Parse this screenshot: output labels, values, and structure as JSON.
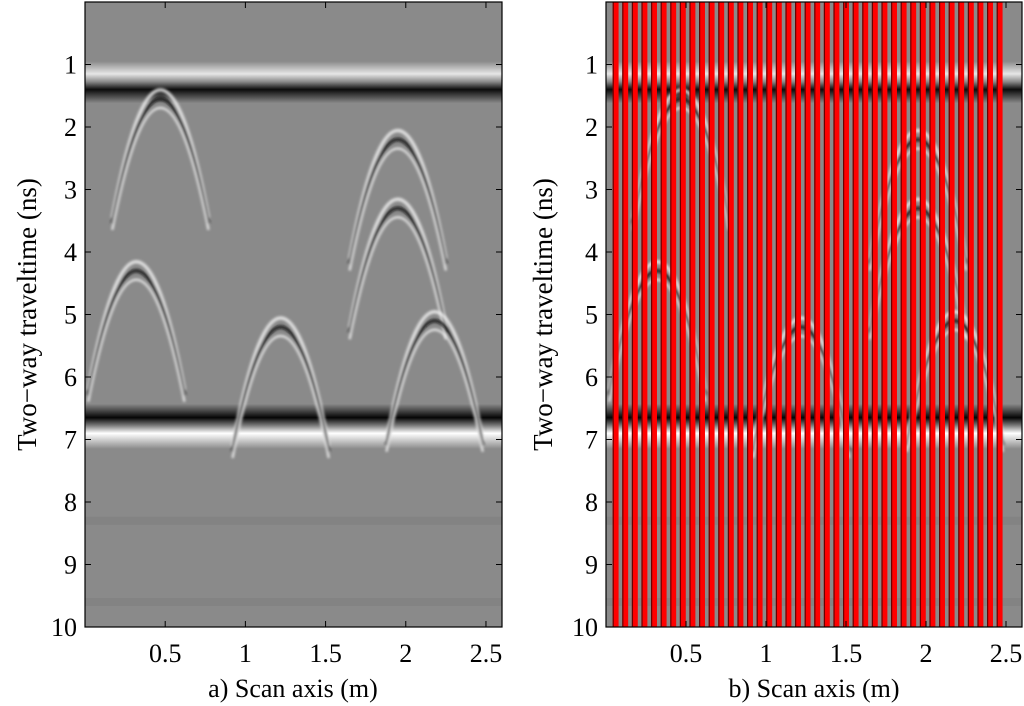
{
  "chart_data": [
    {
      "type": "heatmap",
      "panel": "a",
      "xlabel": "a) Scan axis (m)",
      "ylabel": "Two−way traveltime (ns)",
      "xlim": [
        0,
        2.6
      ],
      "ylim": [
        0,
        10
      ],
      "y_inverted": true,
      "xticks": [
        0.5,
        1,
        1.5,
        2,
        2.5
      ],
      "xticklabels": [
        "0.5",
        "1",
        "1.5",
        "2",
        "2.5"
      ],
      "yticks": [
        1,
        2,
        3,
        4,
        5,
        6,
        7,
        8,
        9,
        10
      ],
      "yticklabels": [
        "1",
        "2",
        "3",
        "4",
        "5",
        "6",
        "7",
        "8",
        "9",
        "10"
      ],
      "colormap": "gray",
      "background_color": "#8a8a8a",
      "horizontal_reflectors": [
        {
          "top_white_ns": 1.15,
          "dark_ns": 1.4
        },
        {
          "dark_ns": 6.65,
          "white_ns": 6.9
        }
      ],
      "hyperbola_apexes": [
        {
          "x": 0.47,
          "t": 1.55
        },
        {
          "x": 0.32,
          "t": 4.3
        },
        {
          "x": 1.22,
          "t": 5.2
        },
        {
          "x": 1.95,
          "t": 2.2
        },
        {
          "x": 1.95,
          "t": 3.3
        },
        {
          "x": 2.18,
          "t": 5.1
        }
      ]
    },
    {
      "type": "heatmap",
      "panel": "b",
      "xlabel": "b) Scan axis (m)",
      "ylabel": "Two−way traveltime (ns)",
      "xlim": [
        0,
        2.6
      ],
      "ylim": [
        0,
        10
      ],
      "y_inverted": true,
      "xticks": [
        0.5,
        1,
        1.5,
        2,
        2.5
      ],
      "xticklabels": [
        "0.5",
        "1",
        "1.5",
        "2",
        "2.5"
      ],
      "yticks": [
        1,
        2,
        3,
        4,
        5,
        6,
        7,
        8,
        9,
        10
      ],
      "yticklabels": [
        "1",
        "2",
        "3",
        "4",
        "5",
        "6",
        "7",
        "8",
        "9",
        "10"
      ],
      "colormap": "gray",
      "background_color": "#8a8a8a",
      "mask_color": "#ff0000",
      "mask_columns_x": [
        0.06,
        0.12,
        0.18,
        0.24,
        0.3,
        0.36,
        0.42,
        0.48,
        0.54,
        0.6,
        0.66,
        0.72,
        0.78,
        0.84,
        0.9,
        0.96,
        1.02,
        1.08,
        1.14,
        1.2,
        1.26,
        1.32,
        1.38,
        1.44,
        1.5,
        1.56,
        1.62,
        1.68,
        1.74,
        1.8,
        1.86,
        1.92,
        1.98,
        2.04,
        2.1,
        2.16,
        2.22,
        2.28,
        2.34,
        2.4,
        2.46
      ],
      "horizontal_reflectors": [
        {
          "top_white_ns": 1.15,
          "dark_ns": 1.4
        },
        {
          "dark_ns": 6.65,
          "white_ns": 6.9
        }
      ],
      "hyperbola_apexes": [
        {
          "x": 0.47,
          "t": 1.55
        },
        {
          "x": 0.32,
          "t": 4.3
        },
        {
          "x": 1.22,
          "t": 5.2
        },
        {
          "x": 1.95,
          "t": 2.2
        },
        {
          "x": 1.95,
          "t": 3.3
        },
        {
          "x": 2.18,
          "t": 5.1
        }
      ]
    }
  ]
}
